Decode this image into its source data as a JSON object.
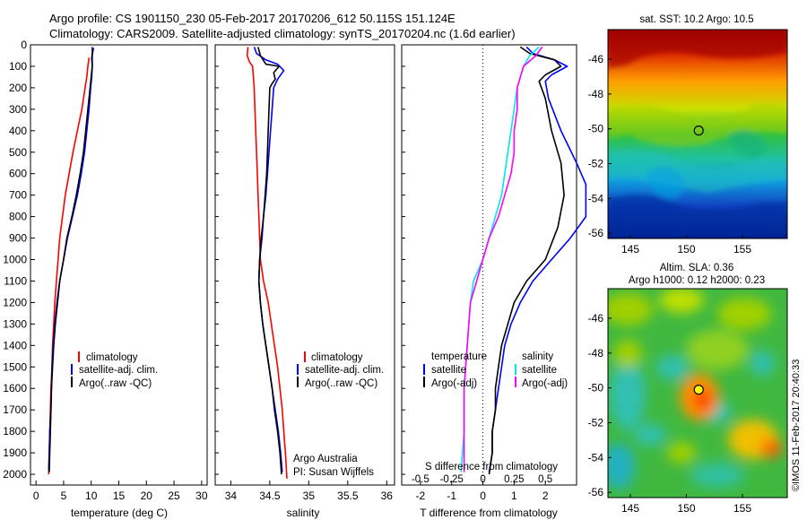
{
  "header": {
    "line1": "Argo profile: CS 1901150_230 05-Feb-2017 20170206_612 50.115S 151.124E",
    "line2": "Climatology: CARS2009. Satellite-adjusted climatology: synTS_20170204.nc (1.6d earlier)"
  },
  "colors": {
    "climatology": "#ff0000",
    "satellite": "#0000ff",
    "argo": "#000000",
    "sat_s": "#00e5ee",
    "argo_s": "#ff00ff"
  },
  "chart_data": [
    {
      "type": "line",
      "id": "temperature",
      "xlabel": "temperature (deg C)",
      "ylabel": "",
      "xlim": [
        -1,
        31
      ],
      "ylim": [
        2050,
        0
      ],
      "xticks": [
        0,
        5,
        10,
        15,
        20,
        25,
        30
      ],
      "yticks": [
        0,
        100,
        200,
        300,
        400,
        500,
        600,
        700,
        800,
        900,
        1000,
        1100,
        1200,
        1300,
        1400,
        1500,
        1600,
        1700,
        1800,
        1900,
        2000
      ],
      "legend": [
        "climatology",
        "satellite-adj. clim.",
        "Argo(..raw -QC)"
      ],
      "series": [
        {
          "name": "climatology",
          "color": "#ff0000",
          "points": [
            [
              9.6,
              60
            ],
            [
              9.4,
              100
            ],
            [
              9.2,
              150
            ],
            [
              8.9,
              200
            ],
            [
              8.3,
              300
            ],
            [
              7.5,
              400
            ],
            [
              6.7,
              500
            ],
            [
              6.0,
              600
            ],
            [
              5.3,
              700
            ],
            [
              4.8,
              800
            ],
            [
              4.3,
              900
            ],
            [
              4.0,
              1000
            ],
            [
              3.7,
              1100
            ],
            [
              3.4,
              1200
            ],
            [
              3.2,
              1300
            ],
            [
              3.0,
              1400
            ],
            [
              2.9,
              1500
            ],
            [
              2.7,
              1600
            ],
            [
              2.6,
              1700
            ],
            [
              2.5,
              1800
            ],
            [
              2.4,
              1900
            ],
            [
              2.3,
              2000
            ]
          ]
        },
        {
          "name": "satellite-adj. clim.",
          "color": "#0000ff",
          "points": [
            [
              10.2,
              10
            ],
            [
              10.2,
              100
            ],
            [
              10.1,
              150
            ],
            [
              9.9,
              200
            ],
            [
              9.6,
              300
            ],
            [
              9.2,
              400
            ],
            [
              8.8,
              500
            ],
            [
              8.2,
              600
            ],
            [
              7.5,
              700
            ],
            [
              6.6,
              800
            ],
            [
              5.7,
              900
            ],
            [
              5.0,
              1000
            ],
            [
              4.3,
              1100
            ],
            [
              3.8,
              1200
            ],
            [
              3.4,
              1300
            ],
            [
              3.1,
              1400
            ],
            [
              2.9,
              1500
            ],
            [
              2.8,
              1600
            ],
            [
              2.7,
              1700
            ],
            [
              2.5,
              1800
            ],
            [
              2.4,
              1900
            ],
            [
              2.3,
              1980
            ]
          ]
        },
        {
          "name": "Argo(..raw -QC)",
          "color": "#000000",
          "points": [
            [
              10.4,
              15
            ],
            [
              10.1,
              60
            ],
            [
              10.2,
              100
            ],
            [
              10.0,
              150
            ],
            [
              9.8,
              200
            ],
            [
              9.4,
              300
            ],
            [
              9.0,
              400
            ],
            [
              8.6,
              500
            ],
            [
              8.0,
              600
            ],
            [
              7.3,
              700
            ],
            [
              6.5,
              800
            ],
            [
              5.6,
              900
            ],
            [
              5.0,
              1000
            ],
            [
              4.3,
              1100
            ],
            [
              3.9,
              1200
            ],
            [
              3.5,
              1300
            ],
            [
              3.2,
              1400
            ],
            [
              3.0,
              1500
            ],
            [
              2.8,
              1600
            ],
            [
              2.7,
              1700
            ],
            [
              2.6,
              1800
            ],
            [
              2.5,
              1900
            ],
            [
              2.4,
              1990
            ]
          ]
        }
      ]
    },
    {
      "type": "line",
      "id": "salinity",
      "xlabel": "salinity",
      "ylabel": "",
      "xlim": [
        33.8,
        36.1
      ],
      "ylim": [
        2050,
        0
      ],
      "xticks": [
        34,
        34.5,
        35,
        35.5,
        36
      ],
      "xticklabels": [
        "34",
        "34.5",
        "35",
        "35.5",
        "36"
      ],
      "legend": [
        "climatology",
        "satellite-adj. clim.",
        "Argo(..raw -QC)"
      ],
      "annotations": [
        "Argo Australia",
        "PI: Susan Wijffels"
      ],
      "series": [
        {
          "name": "climatology",
          "color": "#ff0000",
          "points": [
            [
              34.22,
              10
            ],
            [
              34.21,
              50
            ],
            [
              34.24,
              80
            ],
            [
              34.28,
              100
            ],
            [
              34.3,
              200
            ],
            [
              34.31,
              300
            ],
            [
              34.32,
              400
            ],
            [
              34.33,
              500
            ],
            [
              34.34,
              600
            ],
            [
              34.35,
              700
            ],
            [
              34.36,
              800
            ],
            [
              34.37,
              900
            ],
            [
              34.38,
              1000
            ],
            [
              34.42,
              1100
            ],
            [
              34.48,
              1200
            ],
            [
              34.52,
              1300
            ],
            [
              34.56,
              1400
            ],
            [
              34.6,
              1500
            ],
            [
              34.63,
              1600
            ],
            [
              34.66,
              1700
            ],
            [
              34.68,
              1800
            ],
            [
              34.7,
              1900
            ],
            [
              34.72,
              2020
            ]
          ]
        },
        {
          "name": "satellite-adj. clim.",
          "color": "#0000ff",
          "points": [
            [
              34.3,
              10
            ],
            [
              34.33,
              40
            ],
            [
              34.45,
              70
            ],
            [
              34.6,
              90
            ],
            [
              34.68,
              120
            ],
            [
              34.6,
              160
            ],
            [
              34.55,
              200
            ],
            [
              34.53,
              300
            ],
            [
              34.51,
              400
            ],
            [
              34.49,
              500
            ],
            [
              34.47,
              600
            ],
            [
              34.45,
              700
            ],
            [
              34.42,
              800
            ],
            [
              34.4,
              900
            ],
            [
              34.37,
              1000
            ],
            [
              34.36,
              1100
            ],
            [
              34.38,
              1200
            ],
            [
              34.41,
              1300
            ],
            [
              34.45,
              1400
            ],
            [
              34.49,
              1500
            ],
            [
              34.53,
              1600
            ],
            [
              34.57,
              1700
            ],
            [
              34.61,
              1800
            ],
            [
              34.64,
              1900
            ],
            [
              34.66,
              1990
            ]
          ]
        },
        {
          "name": "Argo(..raw -QC)",
          "color": "#000000",
          "points": [
            [
              34.35,
              10
            ],
            [
              34.38,
              50
            ],
            [
              34.45,
              90
            ],
            [
              34.62,
              100
            ],
            [
              34.55,
              130
            ],
            [
              34.57,
              160
            ],
            [
              34.53,
              180
            ],
            [
              34.5,
              200
            ],
            [
              34.49,
              300
            ],
            [
              34.48,
              400
            ],
            [
              34.47,
              500
            ],
            [
              34.46,
              600
            ],
            [
              34.44,
              700
            ],
            [
              34.42,
              800
            ],
            [
              34.39,
              900
            ],
            [
              34.37,
              1000
            ],
            [
              34.36,
              1100
            ],
            [
              34.38,
              1200
            ],
            [
              34.41,
              1300
            ],
            [
              34.45,
              1400
            ],
            [
              34.49,
              1500
            ],
            [
              34.53,
              1600
            ],
            [
              34.56,
              1700
            ],
            [
              34.6,
              1800
            ],
            [
              34.63,
              1900
            ],
            [
              34.65,
              2000
            ]
          ]
        }
      ]
    },
    {
      "type": "line",
      "id": "differences",
      "xlabel": "T difference from climatology",
      "xlabel_top": "S difference from climatology",
      "ylabel": "",
      "xlim": [
        -2.6,
        3.0
      ],
      "ylim": [
        2050,
        0
      ],
      "xticks": [
        -2,
        -1,
        0,
        1,
        2
      ],
      "s_ticklabels": [
        "-0.5",
        "-0.25",
        "0",
        "0.25",
        "0.5"
      ],
      "legend_headers": [
        "temperature",
        "salinity"
      ],
      "legend": [
        "satellite",
        "Argo(-adj)",
        "satellite",
        "Argo(-adj)"
      ],
      "series": [
        {
          "name": "satellite",
          "group": "temperature",
          "color": "#0000ff",
          "points": [
            [
              1.4,
              10
            ],
            [
              1.6,
              40
            ],
            [
              2.3,
              70
            ],
            [
              2.7,
              100
            ],
            [
              2.2,
              140
            ],
            [
              2.0,
              170
            ],
            [
              2.1,
              250
            ],
            [
              2.5,
              400
            ],
            [
              3.0,
              550
            ],
            [
              3.3,
              650
            ],
            [
              3.3,
              800
            ],
            [
              2.8,
              900
            ],
            [
              2.2,
              1000
            ],
            [
              1.6,
              1100
            ],
            [
              1.2,
              1200
            ],
            [
              0.9,
              1300
            ],
            [
              0.7,
              1400
            ],
            [
              0.6,
              1500
            ],
            [
              0.5,
              1600
            ],
            [
              0.4,
              1700
            ],
            [
              0.3,
              1800
            ],
            [
              0.3,
              1900
            ],
            [
              0.2,
              1990
            ]
          ]
        },
        {
          "name": "Argo(-adj)",
          "group": "temperature",
          "color": "#000000",
          "points": [
            [
              1.2,
              10
            ],
            [
              1.5,
              40
            ],
            [
              2.3,
              70
            ],
            [
              2.5,
              100
            ],
            [
              2.0,
              140
            ],
            [
              1.8,
              170
            ],
            [
              2.0,
              250
            ],
            [
              2.2,
              400
            ],
            [
              2.5,
              550
            ],
            [
              2.6,
              700
            ],
            [
              2.4,
              850
            ],
            [
              2.0,
              1000
            ],
            [
              1.4,
              1100
            ],
            [
              1.0,
              1200
            ],
            [
              0.8,
              1300
            ],
            [
              0.6,
              1400
            ],
            [
              0.5,
              1500
            ],
            [
              0.4,
              1600
            ],
            [
              0.4,
              1700
            ],
            [
              0.3,
              1800
            ],
            [
              0.3,
              1900
            ],
            [
              0.2,
              2000
            ]
          ]
        },
        {
          "name": "satellite",
          "group": "salinity",
          "color": "#00e5ee",
          "points": [
            [
              1.8,
              10
            ],
            [
              1.5,
              50
            ],
            [
              1.3,
              100
            ],
            [
              1.2,
              150
            ],
            [
              1.1,
              200
            ],
            [
              1.0,
              300
            ],
            [
              0.9,
              400
            ],
            [
              0.8,
              500
            ],
            [
              0.7,
              600
            ],
            [
              0.6,
              700
            ],
            [
              0.4,
              800
            ],
            [
              0.2,
              900
            ],
            [
              0.0,
              1000
            ],
            [
              -0.3,
              1100
            ],
            [
              -0.4,
              1200
            ],
            [
              -0.5,
              1400
            ],
            [
              -0.6,
              1600
            ],
            [
              -0.6,
              1800
            ],
            [
              -0.7,
              1990
            ]
          ]
        },
        {
          "name": "Argo(-adj)",
          "group": "salinity",
          "color": "#ff00ff",
          "points": [
            [
              1.9,
              10
            ],
            [
              1.7,
              50
            ],
            [
              1.3,
              100
            ],
            [
              1.2,
              150
            ],
            [
              1.1,
              200
            ],
            [
              1.1,
              300
            ],
            [
              1.0,
              400
            ],
            [
              1.0,
              500
            ],
            [
              0.9,
              600
            ],
            [
              0.7,
              700
            ],
            [
              0.5,
              800
            ],
            [
              0.2,
              900
            ],
            [
              0.0,
              1000
            ],
            [
              -0.2,
              1100
            ],
            [
              -0.4,
              1200
            ],
            [
              -0.5,
              1400
            ],
            [
              -0.6,
              1600
            ],
            [
              -0.6,
              1800
            ],
            [
              -0.6,
              1990
            ]
          ]
        }
      ]
    },
    {
      "type": "heatmap",
      "id": "sst-map",
      "title": "sat. SST: 10.2 Argo: 10.5",
      "xticks": [
        145,
        150,
        155
      ],
      "yticks": [
        -46,
        -48,
        -50,
        -52,
        -54,
        -56
      ],
      "xlim": [
        143,
        159
      ],
      "ylim": [
        -56.3,
        -44.3
      ],
      "marker": {
        "lon": 151.1,
        "lat": -50.1
      }
    },
    {
      "type": "heatmap",
      "id": "sla-map",
      "title": "Altim. SLA: 0.36",
      "subtitle": "Argo h1000: 0.12 h2000: 0.23",
      "xticks": [
        145,
        150,
        155
      ],
      "yticks": [
        -46,
        -48,
        -50,
        -52,
        -54,
        -56
      ],
      "xlim": [
        143,
        159
      ],
      "ylim": [
        -56.3,
        -44.3
      ],
      "marker": {
        "lon": 151.1,
        "lat": -50.1
      }
    }
  ],
  "footer": {
    "stamp": "©IMOS 11-Feb-2017 20:40:33"
  }
}
